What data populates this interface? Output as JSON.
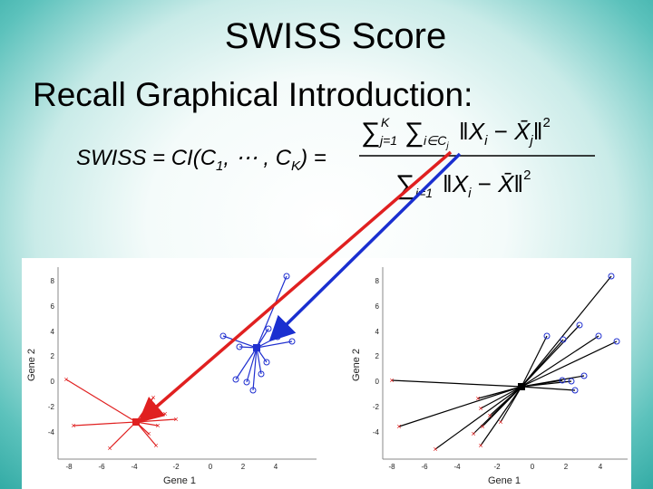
{
  "slide": {
    "title": "SWISS Score",
    "subtitle": "Recall Graphical Introduction:"
  },
  "formula": {
    "lhs": "SWISS = CI(C",
    "lhs_sub1": "1",
    "lhs_mid": ", ⋯ , C",
    "lhs_subK": "K",
    "lhs_end": ") =",
    "num_sum1": "∑",
    "num_sum1_top": "K",
    "num_sum1_bot": "j=1",
    "num_sum2": "∑",
    "num_sum2_bot": "i∈C",
    "num_sum2_botsub": "j",
    "num_norm_open": "‖",
    "num_x": "X",
    "num_x_sub": "i",
    "num_minus": " − ",
    "num_xbar": "X̄",
    "num_xbar_sub": "j",
    "num_norm_close": "‖",
    "num_sq": "2",
    "den_sum": "∑",
    "den_sum_bot": "i=1",
    "den_norm_open": "‖",
    "den_x": "X",
    "den_x_sub": "i",
    "den_minus": " − ",
    "den_xbar": "X̄",
    "den_norm_close": "‖",
    "den_sq": "2"
  },
  "plots": {
    "left": {
      "xlabel": "Gene 1",
      "ylabel": "Gene 2",
      "xticks": [
        "-8",
        "-6",
        "-4",
        "-2",
        "0",
        "2",
        "4"
      ],
      "yticks": [
        "8",
        "6",
        "4",
        "2",
        "0",
        "-2",
        "-4"
      ]
    },
    "right": {
      "xlabel": "Gene 1",
      "ylabel": "Gene 2",
      "xticks": [
        "-8",
        "-6",
        "-4",
        "-2",
        "0",
        "2",
        "4"
      ],
      "yticks": [
        "8",
        "6",
        "4",
        "2",
        "0",
        "-2",
        "-4"
      ]
    }
  },
  "colors": {
    "cluster1": "#e02020",
    "cluster2": "#2030d0",
    "overall": "#000000",
    "arrow_red": "#e02020",
    "arrow_blue": "#1a2fd0"
  }
}
